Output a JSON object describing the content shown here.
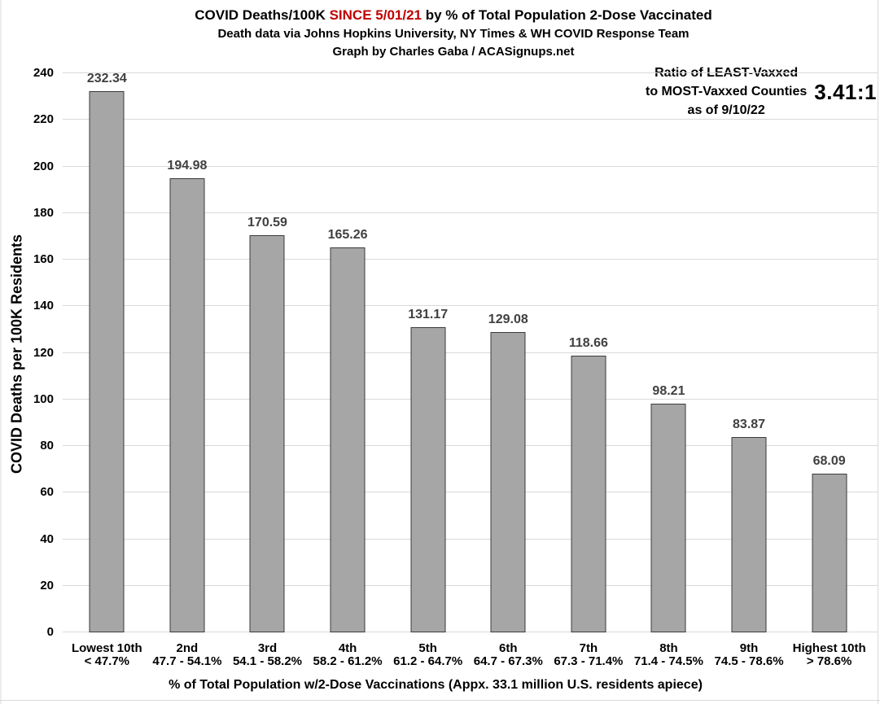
{
  "header": {
    "title_prefix": "COVID Deaths/100K ",
    "title_highlight": "SINCE 5/01/21",
    "title_suffix": " by % of Total Population 2-Dose Vaccinated",
    "subtitle": "Death data via Johns Hopkins University, NY Times & WH COVID Response Team",
    "credit": "Graph by Charles Gaba / ACASignups.net",
    "highlight_color": "#c00000"
  },
  "annotation": {
    "line1": "Ratio of LEAST-Vaxxed",
    "line2": "to MOST-Vaxxed Counties",
    "line3": "as of 9/10/22",
    "ratio_value": "3.41:1"
  },
  "chart_data": {
    "type": "bar",
    "title": "COVID Deaths/100K SINCE 5/01/21 by % of Total Population 2-Dose Vaccinated",
    "subtitle": "Death data via Johns Hopkins University, NY Times & WH COVID Response Team",
    "credit": "Graph by Charles Gaba / ACASignups.net",
    "xlabel": "% of Total Population w/2-Dose Vaccinations (Appx. 33.1 million U.S. residents apiece)",
    "ylabel": "COVID Deaths per 100K Residents",
    "categories": [
      "Lowest 10th",
      "2nd",
      "3rd",
      "4th",
      "5th",
      "6th",
      "7th",
      "8th",
      "9th",
      "Highest 10th"
    ],
    "category_ranges": [
      "< 47.7%",
      "47.7 - 54.1%",
      "54.1 - 58.2%",
      "58.2 - 61.2%",
      "61.2 - 64.7%",
      "64.7 - 67.3%",
      "67.3 - 71.4%",
      "71.4 - 74.5%",
      "74.5 - 78.6%",
      "> 78.6%"
    ],
    "values": [
      232.34,
      194.98,
      170.59,
      165.26,
      131.17,
      129.08,
      118.66,
      98.21,
      83.87,
      68.09
    ],
    "ylim": [
      0,
      240
    ],
    "ytick_step": 20,
    "grid": true,
    "legend": false,
    "annotation_ratio": "3.41:1",
    "annotation_as_of": "9/10/22",
    "colors": {
      "bar_fill": "#a6a6a6",
      "bar_border": "#3b3b3b",
      "value_label": "#404040",
      "gridline": "#d9d9d9",
      "axis_text": "#000000",
      "title_highlight": "#c00000"
    }
  }
}
